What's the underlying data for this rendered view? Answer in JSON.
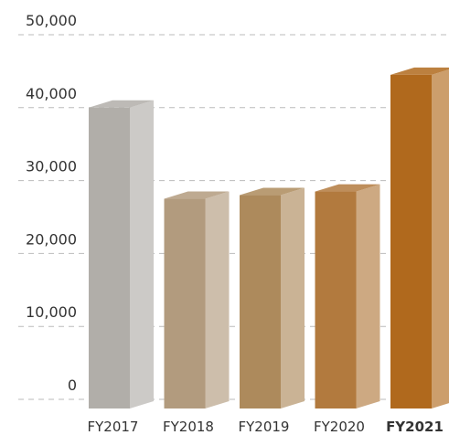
{
  "chart_data": {
    "type": "bar3d",
    "categories": [
      "FY2017",
      "FY2018",
      "FY2019",
      "FY2020",
      "FY2021"
    ],
    "values": [
      40000,
      27500,
      28000,
      28500,
      44500
    ],
    "colors": [
      "#b1aea9",
      "#b29b7e",
      "#ad8a5c",
      "#b27a3e",
      "#b0691d"
    ],
    "ylim": [
      0,
      50000
    ],
    "yticks": [
      0,
      {
        "value": 10000,
        "label": "10,000"
      },
      {
        "value": 20000,
        "label": "20,000"
      },
      {
        "value": 30000,
        "label": "30,000"
      },
      {
        "value": 40000,
        "label": "40,000"
      },
      {
        "value": 50000,
        "label": "50,000"
      }
    ],
    "grid": true
  }
}
